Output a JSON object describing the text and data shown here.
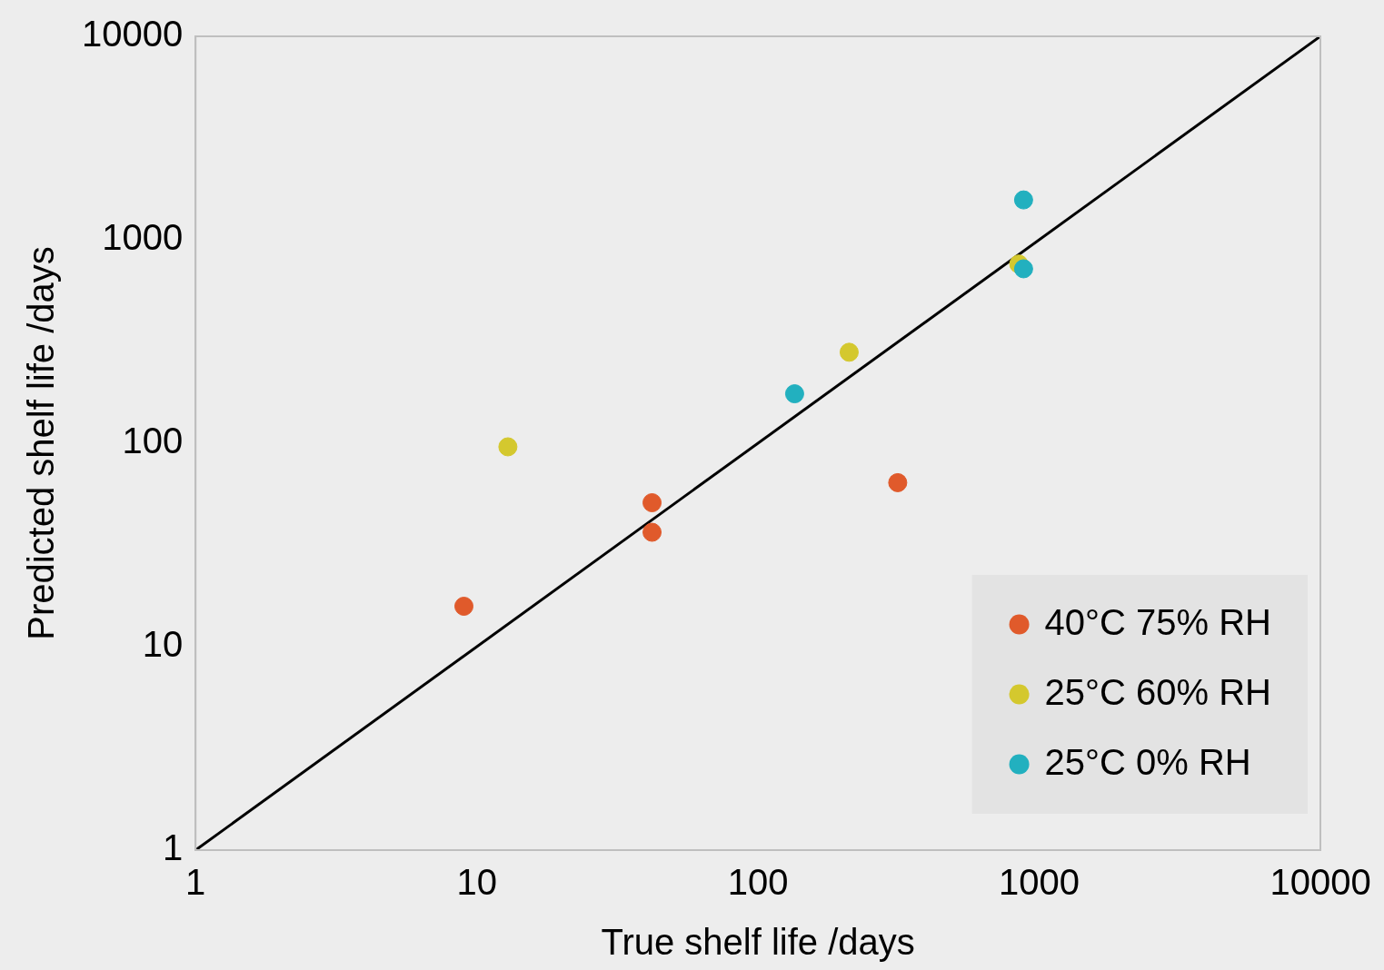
{
  "chart_data": {
    "type": "scatter",
    "xlabel": "True shelf life /days",
    "ylabel": "Predicted shelf life /days",
    "log": "xy",
    "xlim": [
      1,
      10000
    ],
    "ylim": [
      1,
      10000
    ],
    "xticks": [
      1,
      10,
      100,
      1000,
      10000
    ],
    "yticks": [
      1,
      10,
      100,
      1000,
      10000
    ],
    "grid": false,
    "legend": "bottom right",
    "marker": "circle",
    "series": [
      {
        "name": "40°C 75% RH",
        "color": "#e05a2b",
        "x": [
          9,
          42,
          42,
          314
        ],
        "values": [
          15.8,
          51,
          36.5,
          64
        ]
      },
      {
        "name": "25°C 60% RH",
        "color": "#d4c82e",
        "x": [
          12.9,
          211,
          846
        ],
        "values": [
          96,
          280,
          760
        ]
      },
      {
        "name": "25°C 0% RH",
        "color": "#22b0bf",
        "x": [
          135,
          880,
          880
        ],
        "values": [
          175,
          1570,
          720
        ]
      },
      {
        "type": "line",
        "color": "#000000",
        "line_style": "solid",
        "marker": "none",
        "x": [
          1,
          10000
        ],
        "values": [
          1,
          10000
        ]
      }
    ]
  }
}
